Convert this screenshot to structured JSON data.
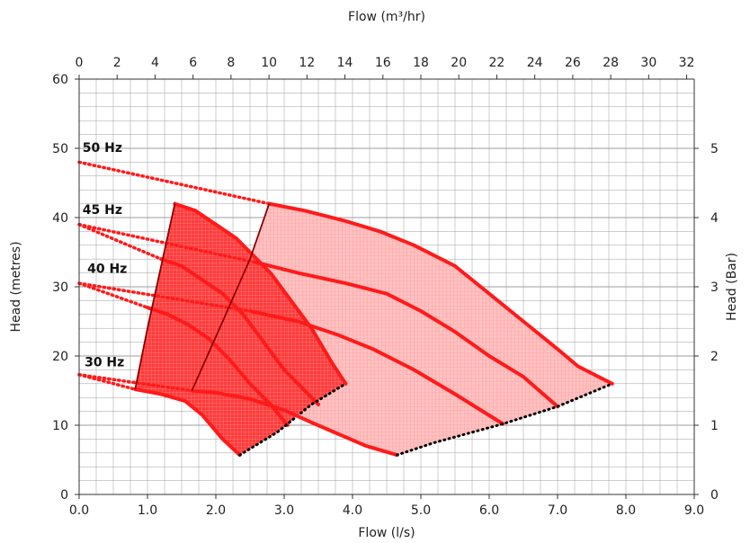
{
  "chart_data": {
    "type": "line",
    "title": "",
    "xlabel": "Flow (l/s)",
    "x2label": "Flow (m³/hr)",
    "ylabel": "Head (metres)",
    "y2label": "Head (Bar)",
    "xlim": [
      0,
      9
    ],
    "ylim": [
      0,
      60
    ],
    "x2lim": [
      0,
      32.4
    ],
    "y2lim": [
      0,
      6
    ],
    "x_ticks": [
      "0.0",
      "1.0",
      "2.0",
      "3.0",
      "4.0",
      "5.0",
      "6.0",
      "7.0",
      "8.0",
      "9.0"
    ],
    "y_ticks": [
      "0",
      "10",
      "20",
      "30",
      "40",
      "50",
      "60"
    ],
    "x2_ticks": [
      "0",
      "2",
      "4",
      "6",
      "8",
      "10",
      "12",
      "14",
      "16",
      "18",
      "20",
      "22",
      "24",
      "26",
      "28",
      "30",
      "32"
    ],
    "y2_ticks": [
      "0",
      "1",
      "2",
      "3",
      "4",
      "5"
    ],
    "grid": true,
    "pump_a": {
      "region": [
        [
          1.4,
          42
        ],
        [
          1.7,
          41
        ],
        [
          2.0,
          39
        ],
        [
          2.3,
          37
        ],
        [
          2.5,
          35
        ],
        [
          2.8,
          32
        ],
        [
          3.1,
          28
        ],
        [
          3.4,
          24
        ],
        [
          3.7,
          19
        ],
        [
          3.9,
          16
        ],
        [
          3.4,
          13
        ],
        [
          2.9,
          9
        ],
        [
          2.35,
          5.7
        ],
        [
          2.1,
          8
        ],
        [
          1.8,
          11.5
        ],
        [
          1.55,
          13.5
        ],
        [
          1.2,
          14.5
        ],
        [
          0.82,
          15.2
        ],
        [
          1.0,
          24
        ],
        [
          1.2,
          33
        ]
      ],
      "curves": [
        {
          "name": "50 Hz",
          "points": [
            [
              1.4,
              42
            ],
            [
              1.7,
              41
            ],
            [
              2.0,
              39
            ],
            [
              2.3,
              37
            ],
            [
              2.5,
              35
            ],
            [
              2.8,
              32
            ],
            [
              3.1,
              28
            ],
            [
              3.4,
              24
            ],
            [
              3.7,
              19
            ],
            [
              3.9,
              16
            ]
          ]
        },
        {
          "name": "45 Hz",
          "points": [
            [
              1.2,
              34
            ],
            [
              1.5,
              33
            ],
            [
              1.8,
              31
            ],
            [
              2.1,
              29
            ],
            [
              2.4,
              26
            ],
            [
              2.7,
              22
            ],
            [
              3.0,
              18
            ],
            [
              3.3,
              15
            ],
            [
              3.5,
              13
            ]
          ]
        },
        {
          "name": "40 Hz",
          "points": [
            [
              1.0,
              27
            ],
            [
              1.3,
              26
            ],
            [
              1.6,
              24.5
            ],
            [
              1.9,
              22.5
            ],
            [
              2.2,
              19.5
            ],
            [
              2.5,
              16
            ],
            [
              2.8,
              13
            ],
            [
              3.05,
              10
            ]
          ]
        },
        {
          "name": "30 Hz",
          "points": [
            [
              0.82,
              15.2
            ],
            [
              1.2,
              14.5
            ],
            [
              1.55,
              13.5
            ],
            [
              1.8,
              11.5
            ],
            [
              2.1,
              8
            ],
            [
              2.35,
              5.7
            ]
          ]
        }
      ],
      "left_boundary": [
        [
          0.82,
          15.2
        ],
        [
          1.0,
          24
        ],
        [
          1.2,
          33
        ],
        [
          1.4,
          42
        ]
      ],
      "right_boundary": [
        [
          2.35,
          5.7
        ],
        [
          2.9,
          9
        ],
        [
          3.4,
          13
        ],
        [
          3.9,
          16
        ]
      ]
    },
    "pump_b": {
      "region": [
        [
          2.78,
          42
        ],
        [
          3.3,
          41
        ],
        [
          3.9,
          39.5
        ],
        [
          4.4,
          38
        ],
        [
          4.9,
          36
        ],
        [
          5.5,
          33
        ],
        [
          6.0,
          29
        ],
        [
          6.5,
          25
        ],
        [
          7.0,
          21
        ],
        [
          7.3,
          18.5
        ],
        [
          7.8,
          16
        ],
        [
          7.0,
          12.7
        ],
        [
          6.2,
          10.2
        ],
        [
          5.2,
          7.5
        ],
        [
          4.65,
          5.7
        ],
        [
          4.2,
          7
        ],
        [
          3.8,
          8.7
        ],
        [
          3.4,
          10.4
        ],
        [
          3.0,
          12.2
        ],
        [
          2.5,
          13.8
        ],
        [
          2.0,
          14.7
        ],
        [
          1.65,
          15
        ],
        [
          2.1,
          25
        ],
        [
          2.5,
          34
        ]
      ],
      "curves": [
        {
          "name": "50 Hz",
          "points": [
            [
              2.78,
              42
            ],
            [
              3.3,
              41
            ],
            [
              3.9,
              39.5
            ],
            [
              4.4,
              38
            ],
            [
              4.9,
              36
            ],
            [
              5.5,
              33
            ],
            [
              6.0,
              29
            ],
            [
              6.5,
              25
            ],
            [
              7.0,
              21
            ],
            [
              7.3,
              18.5
            ],
            [
              7.8,
              16
            ]
          ]
        },
        {
          "name": "45 Hz",
          "points": [
            [
              2.6,
              33.5
            ],
            [
              3.2,
              32
            ],
            [
              3.9,
              30.5
            ],
            [
              4.5,
              29
            ],
            [
              5.0,
              26.5
            ],
            [
              5.5,
              23.5
            ],
            [
              6.0,
              20
            ],
            [
              6.5,
              17
            ],
            [
              7.0,
              12.7
            ]
          ]
        },
        {
          "name": "40 Hz",
          "points": [
            [
              2.5,
              26.5
            ],
            [
              3.2,
              25
            ],
            [
              3.8,
              23
            ],
            [
              4.3,
              21
            ],
            [
              4.9,
              18
            ],
            [
              5.5,
              14.5
            ],
            [
              6.2,
              10.2
            ]
          ]
        },
        {
          "name": "30 Hz",
          "points": [
            [
              1.65,
              15
            ],
            [
              2.0,
              14.7
            ],
            [
              2.5,
              13.8
            ],
            [
              3.0,
              12.2
            ],
            [
              3.4,
              10.4
            ],
            [
              3.8,
              8.7
            ],
            [
              4.2,
              7
            ],
            [
              4.65,
              5.7
            ]
          ]
        }
      ],
      "left_boundary": [
        [
          1.65,
          15
        ],
        [
          2.1,
          25
        ],
        [
          2.5,
          34
        ],
        [
          2.78,
          42
        ]
      ],
      "right_boundary": [
        [
          4.65,
          5.7
        ],
        [
          5.2,
          7.5
        ],
        [
          6.2,
          10.2
        ],
        [
          7.0,
          12.7
        ],
        [
          7.8,
          16
        ]
      ]
    },
    "extensions": [
      {
        "name": "50 Hz",
        "from": [
          0,
          48
        ],
        "to": [
          2.78,
          42
        ]
      },
      {
        "name": "45 Hz",
        "from": [
          0,
          39
        ],
        "to": [
          2.6,
          33.5
        ]
      },
      {
        "name": "40 Hz",
        "from": [
          0,
          30.5
        ],
        "to": [
          2.5,
          26.5
        ]
      },
      {
        "name": "30 Hz",
        "from": [
          0,
          17.3
        ],
        "to": [
          1.65,
          15
        ]
      },
      {
        "name": "45 Hz",
        "from": [
          0,
          39
        ],
        "to": [
          1.2,
          34
        ]
      },
      {
        "name": "40 Hz",
        "from": [
          0,
          30.5
        ],
        "to": [
          1.0,
          27
        ]
      },
      {
        "name": "30 Hz",
        "from": [
          0,
          17.3
        ],
        "to": [
          0.82,
          15.2
        ]
      }
    ],
    "labels": [
      {
        "text": "50 Hz",
        "at": [
          0.05,
          49.5
        ]
      },
      {
        "text": "45 Hz",
        "at": [
          0.05,
          40.5
        ]
      },
      {
        "text": "40 Hz",
        "at": [
          0.12,
          32.0
        ]
      },
      {
        "text": "30 Hz",
        "at": [
          0.08,
          18.5
        ]
      }
    ],
    "colors": {
      "curve": "#ff1a1a",
      "fill_a": "#ff4a4a",
      "fill_b": "#ffb3b3",
      "boundary": "#8b0000",
      "dotted_end": "#000000",
      "grid": "#9e9e9e",
      "axis": "#333333"
    }
  }
}
